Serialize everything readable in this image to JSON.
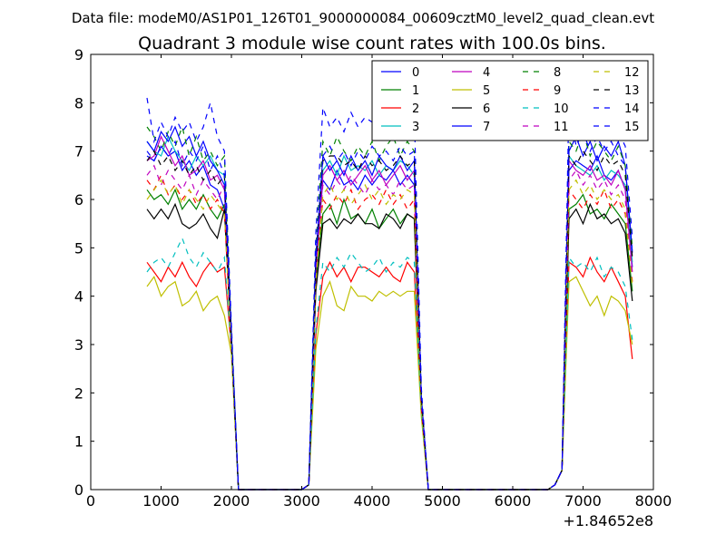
{
  "chart_data": {
    "type": "line",
    "suptitle": "Data file: modeM0/AS1P01_126T01_9000000084_00609cztM0_level2_quad_clean.evt",
    "title": "Quadrant 3 module wise count rates with 100.0s bins.",
    "xlabel": "",
    "ylabel": "",
    "x_offset_label": "+1.84652e8",
    "xlim": [
      0,
      8000
    ],
    "ylim": [
      0,
      9
    ],
    "xticks": [
      0,
      1000,
      2000,
      3000,
      4000,
      5000,
      6000,
      7000,
      8000
    ],
    "yticks": [
      0,
      1,
      2,
      3,
      4,
      5,
      6,
      7,
      8,
      9
    ],
    "legend_position": "top-right",
    "legend_columns": 4,
    "x": [
      800,
      900,
      1000,
      1100,
      1200,
      1300,
      1400,
      1500,
      1600,
      1700,
      1800,
      1900,
      2000,
      2100,
      2200,
      2300,
      2400,
      2500,
      2600,
      2700,
      2800,
      2900,
      3000,
      3100,
      3200,
      3300,
      3400,
      3500,
      3600,
      3700,
      3800,
      3900,
      4000,
      4100,
      4200,
      4300,
      4400,
      4500,
      4600,
      4700,
      4800,
      4900,
      5000,
      5100,
      5200,
      5300,
      5400,
      5500,
      5600,
      5700,
      5800,
      5900,
      6000,
      6100,
      6200,
      6300,
      6400,
      6500,
      6600,
      6700,
      6800,
      6900,
      7000,
      7100,
      7200,
      7300,
      7400,
      7500,
      7600,
      7700
    ],
    "series": [
      {
        "name": "0",
        "color": "#0000ff",
        "dash": "solid",
        "values": [
          6.9,
          6.8,
          7.1,
          6.9,
          7.0,
          6.6,
          6.8,
          6.5,
          6.7,
          6.3,
          6.2,
          5.8,
          3.0,
          0,
          0,
          0,
          0,
          0,
          0,
          0,
          0,
          0,
          0,
          0.1,
          4.6,
          6.4,
          6.2,
          6.6,
          6.3,
          6.4,
          6.2,
          6.5,
          6.3,
          6.5,
          6.4,
          6.6,
          6.3,
          6.5,
          6.3,
          1.8,
          0,
          0,
          0,
          0,
          0,
          0,
          0,
          0,
          0,
          0,
          0,
          0,
          0,
          0,
          0,
          0,
          0,
          0,
          0.1,
          0.4,
          6.6,
          6.8,
          6.7,
          6.6,
          6.9,
          6.5,
          6.4,
          6.6,
          6.2,
          4.6
        ]
      },
      {
        "name": "1",
        "color": "#008000",
        "dash": "solid",
        "values": [
          6.2,
          6.0,
          6.1,
          5.9,
          6.2,
          5.8,
          6.0,
          5.8,
          6.1,
          5.8,
          5.6,
          5.9,
          3.1,
          0,
          0,
          0,
          0,
          0,
          0,
          0,
          0,
          0,
          0,
          0.1,
          4.3,
          5.7,
          5.9,
          5.5,
          6.0,
          5.6,
          5.7,
          5.5,
          5.8,
          5.4,
          5.6,
          5.8,
          5.5,
          5.7,
          5.6,
          1.8,
          0,
          0,
          0,
          0,
          0,
          0,
          0,
          0,
          0,
          0,
          0,
          0,
          0,
          0,
          0,
          0,
          0,
          0,
          0.1,
          0.4,
          5.8,
          5.9,
          6.1,
          5.7,
          5.8,
          5.6,
          5.9,
          5.7,
          5.5,
          4.1
        ]
      },
      {
        "name": "2",
        "color": "#ff0000",
        "dash": "solid",
        "values": [
          4.7,
          4.5,
          4.3,
          4.6,
          4.4,
          4.7,
          4.4,
          4.2,
          4.5,
          4.7,
          4.5,
          4.6,
          2.9,
          0,
          0,
          0,
          0,
          0,
          0,
          0,
          0,
          0,
          0,
          0.1,
          3.2,
          4.4,
          4.7,
          4.4,
          4.6,
          4.3,
          4.6,
          4.6,
          4.5,
          4.4,
          4.6,
          4.4,
          4.3,
          4.7,
          4.5,
          1.6,
          0,
          0,
          0,
          0,
          0,
          0,
          0,
          0,
          0,
          0,
          0,
          0,
          0,
          0,
          0,
          0,
          0,
          0,
          0.1,
          0.4,
          4.7,
          4.6,
          4.4,
          4.8,
          4.5,
          4.3,
          4.6,
          4.3,
          4.0,
          2.7
        ]
      },
      {
        "name": "3",
        "color": "#00bfbf",
        "dash": "solid",
        "values": [
          7.2,
          7.0,
          6.9,
          7.3,
          7.0,
          6.8,
          6.6,
          6.9,
          6.7,
          6.9,
          6.6,
          6.5,
          3.2,
          0,
          0,
          0,
          0,
          0,
          0,
          0,
          0,
          0,
          0,
          0.1,
          4.7,
          6.6,
          6.8,
          6.5,
          6.9,
          6.6,
          6.7,
          6.6,
          6.8,
          6.5,
          6.7,
          6.6,
          6.8,
          6.7,
          6.5,
          1.9,
          0,
          0,
          0,
          0,
          0,
          0,
          0,
          0,
          0,
          0,
          0,
          0,
          0,
          0,
          0,
          0,
          0,
          0,
          0.1,
          0.4,
          6.9,
          6.7,
          6.6,
          6.5,
          6.7,
          6.4,
          6.6,
          6.5,
          6.3,
          4.7
        ]
      },
      {
        "name": "4",
        "color": "#bf00bf",
        "dash": "solid",
        "values": [
          6.8,
          6.9,
          7.3,
          7.0,
          6.7,
          6.9,
          6.5,
          6.6,
          6.8,
          6.4,
          6.5,
          6.2,
          3.1,
          0,
          0,
          0,
          0,
          0,
          0,
          0,
          0,
          0,
          0,
          0.1,
          4.5,
          6.5,
          6.7,
          6.4,
          6.6,
          6.3,
          6.5,
          6.7,
          6.4,
          6.6,
          6.3,
          6.5,
          6.7,
          6.4,
          6.6,
          1.8,
          0,
          0,
          0,
          0,
          0,
          0,
          0,
          0,
          0,
          0,
          0,
          0,
          0,
          0,
          0,
          0,
          0,
          0,
          0.1,
          0.4,
          6.8,
          6.6,
          6.5,
          6.7,
          6.4,
          6.5,
          6.3,
          6.6,
          6.2,
          4.5
        ]
      },
      {
        "name": "5",
        "color": "#bfbf00",
        "dash": "solid",
        "values": [
          4.2,
          4.4,
          4.0,
          4.2,
          4.3,
          3.8,
          3.9,
          4.1,
          3.7,
          3.9,
          4.0,
          3.6,
          2.8,
          0,
          0,
          0,
          0,
          0,
          0,
          0,
          0,
          0,
          0,
          0.1,
          2.9,
          4.0,
          4.3,
          3.8,
          3.7,
          4.2,
          4.0,
          4.0,
          3.9,
          4.1,
          4.0,
          4.1,
          4.0,
          4.1,
          4.1,
          1.5,
          0,
          0,
          0,
          0,
          0,
          0,
          0,
          0,
          0,
          0,
          0,
          0,
          0,
          0,
          0,
          0,
          0,
          0,
          0.1,
          0.4,
          4.3,
          4.4,
          4.1,
          3.8,
          4.0,
          3.6,
          4.0,
          3.9,
          3.7,
          3.0
        ]
      },
      {
        "name": "6",
        "color": "#000000",
        "dash": "solid",
        "values": [
          5.8,
          5.6,
          5.8,
          5.6,
          5.9,
          5.5,
          5.4,
          5.5,
          5.7,
          5.4,
          5.2,
          5.8,
          3.0,
          0,
          0,
          0,
          0,
          0,
          0,
          0,
          0,
          0,
          0,
          0.1,
          4.1,
          5.5,
          5.6,
          5.4,
          5.6,
          5.5,
          5.7,
          5.5,
          5.5,
          5.4,
          5.7,
          5.6,
          5.4,
          5.7,
          5.6,
          1.7,
          0,
          0,
          0,
          0,
          0,
          0,
          0,
          0,
          0,
          0,
          0,
          0,
          0,
          0,
          0,
          0,
          0,
          0,
          0.1,
          0.4,
          5.6,
          5.8,
          5.5,
          5.9,
          5.6,
          5.7,
          5.5,
          5.6,
          5.3,
          3.9
        ]
      },
      {
        "name": "7",
        "color": "#0000ff",
        "dash": "solid",
        "values": [
          7.2,
          7.0,
          7.4,
          7.2,
          7.5,
          7.1,
          7.3,
          6.9,
          7.2,
          6.8,
          6.6,
          6.3,
          3.2,
          0,
          0,
          0,
          0,
          0,
          0,
          0,
          0,
          0,
          0,
          0.1,
          4.8,
          6.9,
          6.6,
          6.8,
          6.5,
          6.9,
          6.6,
          6.8,
          6.5,
          6.9,
          6.7,
          6.6,
          6.9,
          6.6,
          6.8,
          1.9,
          0,
          0,
          0,
          0,
          0,
          0,
          0,
          0,
          0,
          0,
          0,
          0,
          0,
          0,
          0,
          0,
          0,
          0,
          0.1,
          0.4,
          7.0,
          7.3,
          6.9,
          7.2,
          6.8,
          7.1,
          6.9,
          7.2,
          6.7,
          4.9
        ]
      },
      {
        "name": "8",
        "color": "#008000",
        "dash": "dashed",
        "values": [
          7.5,
          7.3,
          7.0,
          7.4,
          7.1,
          7.5,
          6.9,
          7.3,
          6.8,
          7.0,
          6.7,
          6.9,
          3.3,
          0,
          0,
          0,
          0,
          0,
          0,
          0,
          0,
          0,
          0,
          0.1,
          5.0,
          7.2,
          6.9,
          7.3,
          7.0,
          6.8,
          7.1,
          6.9,
          7.2,
          6.8,
          7.1,
          7.3,
          6.9,
          7.2,
          7.0,
          2.0,
          0,
          0,
          0,
          0,
          0,
          0,
          0,
          0,
          0,
          0,
          0,
          0,
          0,
          0,
          0,
          0,
          0,
          0,
          0.1,
          0.4,
          7.2,
          7.0,
          7.4,
          6.9,
          7.2,
          7.0,
          6.8,
          7.1,
          6.7,
          5.0
        ]
      },
      {
        "name": "9",
        "color": "#ff0000",
        "dash": "dashed",
        "values": [
          6.4,
          6.2,
          6.5,
          6.1,
          6.3,
          6.0,
          6.2,
          5.9,
          6.1,
          5.8,
          6.0,
          5.7,
          3.0,
          0,
          0,
          0,
          0,
          0,
          0,
          0,
          0,
          0,
          0,
          0.1,
          4.4,
          6.0,
          5.8,
          6.1,
          5.9,
          6.2,
          5.8,
          6.0,
          6.1,
          5.9,
          6.2,
          5.9,
          6.1,
          5.8,
          6.0,
          1.7,
          0,
          0,
          0,
          0,
          0,
          0,
          0,
          0,
          0,
          0,
          0,
          0,
          0,
          0,
          0,
          0,
          0,
          0,
          0.1,
          0.4,
          6.2,
          6.0,
          5.8,
          6.1,
          5.9,
          6.2,
          5.8,
          6.0,
          5.7,
          4.3
        ]
      },
      {
        "name": "10",
        "color": "#00bfbf",
        "dash": "dashed",
        "values": [
          4.5,
          4.7,
          4.8,
          4.6,
          4.9,
          5.2,
          4.8,
          4.6,
          4.9,
          4.7,
          4.5,
          4.8,
          2.9,
          0,
          0,
          0,
          0,
          0,
          0,
          0,
          0,
          0,
          0,
          0.1,
          3.3,
          4.7,
          4.5,
          4.8,
          4.6,
          4.9,
          4.7,
          4.5,
          4.6,
          4.8,
          4.5,
          4.7,
          4.6,
          4.8,
          4.7,
          1.6,
          0,
          0,
          0,
          0,
          0,
          0,
          0,
          0,
          0,
          0,
          0,
          0,
          0,
          0,
          0,
          0,
          0,
          0,
          0.1,
          0.4,
          4.8,
          4.6,
          4.7,
          4.5,
          4.8,
          4.4,
          4.6,
          4.5,
          4.2,
          3.1
        ]
      },
      {
        "name": "11",
        "color": "#bf00bf",
        "dash": "dashed",
        "values": [
          6.5,
          6.7,
          6.3,
          6.6,
          6.4,
          6.2,
          6.5,
          6.1,
          6.4,
          6.2,
          6.0,
          6.3,
          3.0,
          0,
          0,
          0,
          0,
          0,
          0,
          0,
          0,
          0,
          0,
          0.1,
          4.5,
          6.3,
          6.1,
          6.4,
          6.2,
          6.5,
          6.3,
          6.1,
          6.4,
          6.2,
          6.3,
          6.1,
          6.4,
          6.2,
          6.3,
          1.8,
          0,
          0,
          0,
          0,
          0,
          0,
          0,
          0,
          0,
          0,
          0,
          0,
          0,
          0,
          0,
          0,
          0,
          0,
          0.1,
          0.4,
          6.4,
          6.6,
          6.3,
          6.5,
          6.2,
          6.4,
          6.1,
          6.3,
          6.0,
          4.4
        ]
      },
      {
        "name": "12",
        "color": "#bfbf00",
        "dash": "dashed",
        "values": [
          6.0,
          6.2,
          6.4,
          6.1,
          6.3,
          5.9,
          6.2,
          6.0,
          5.8,
          6.1,
          5.9,
          5.7,
          2.9,
          0,
          0,
          0,
          0,
          0,
          0,
          0,
          0,
          0,
          0,
          0.1,
          4.3,
          6.1,
          6.3,
          6.0,
          6.2,
          5.9,
          6.1,
          6.3,
          6.0,
          6.2,
          5.9,
          6.1,
          6.0,
          6.2,
          6.1,
          1.7,
          0,
          0,
          0,
          0,
          0,
          0,
          0,
          0,
          0,
          0,
          0,
          0,
          0,
          0,
          0,
          0,
          0,
          0,
          0.1,
          0.4,
          6.2,
          6.4,
          6.1,
          6.3,
          6.0,
          6.2,
          6.0,
          6.1,
          5.8,
          4.2
        ]
      },
      {
        "name": "13",
        "color": "#000000",
        "dash": "dashed",
        "values": [
          6.8,
          7.0,
          6.7,
          6.9,
          6.6,
          6.8,
          6.5,
          6.7,
          6.4,
          6.6,
          6.3,
          6.5,
          3.1,
          0,
          0,
          0,
          0,
          0,
          0,
          0,
          0,
          0,
          0,
          0.1,
          4.6,
          6.8,
          6.9,
          6.9,
          6.7,
          6.8,
          6.6,
          6.9,
          6.7,
          6.8,
          6.6,
          6.7,
          6.9,
          6.7,
          6.8,
          1.9,
          0,
          0,
          0,
          0,
          0,
          0,
          0,
          0,
          0,
          0,
          0,
          0,
          0,
          0,
          0,
          0,
          0,
          0,
          0.1,
          0.4,
          6.9,
          6.7,
          7.0,
          6.8,
          6.6,
          6.9,
          6.7,
          6.8,
          6.5,
          4.8
        ]
      },
      {
        "name": "14",
        "color": "#0000ff",
        "dash": "dashed",
        "values": [
          8.1,
          7.2,
          7.6,
          7.3,
          7.7,
          7.4,
          7.6,
          7.2,
          7.5,
          8.0,
          7.3,
          7.0,
          3.4,
          0,
          0,
          0,
          0,
          0,
          0,
          0,
          0,
          0,
          0,
          0.1,
          5.3,
          7.9,
          7.5,
          7.7,
          7.4,
          7.8,
          7.5,
          7.7,
          7.6,
          7.8,
          7.5,
          7.7,
          7.4,
          7.6,
          7.8,
          2.1,
          0,
          0,
          0,
          0,
          0,
          0,
          0,
          0,
          0,
          0,
          0,
          0,
          0,
          0,
          0,
          0,
          0,
          0,
          0.1,
          0.4,
          7.5,
          7.7,
          7.4,
          7.8,
          7.5,
          7.3,
          7.6,
          7.4,
          7.1,
          5.2
        ]
      },
      {
        "name": "15",
        "color": "#0000ff",
        "dash": "dashed",
        "values": [
          7.0,
          6.8,
          7.1,
          6.9,
          7.2,
          6.7,
          7.0,
          6.8,
          7.1,
          6.6,
          6.9,
          6.5,
          3.2,
          0,
          0,
          0,
          0,
          0,
          0,
          0,
          0,
          0,
          0,
          0.1,
          4.8,
          6.9,
          7.1,
          6.8,
          7.0,
          6.7,
          7.0,
          6.8,
          7.1,
          6.9,
          7.0,
          6.8,
          7.1,
          6.9,
          7.0,
          1.9,
          0,
          0,
          0,
          0,
          0,
          0,
          0,
          0,
          0,
          0,
          0,
          0,
          0,
          0,
          0,
          0,
          0,
          0,
          0.1,
          0.4,
          8.1,
          7.1,
          7.4,
          7.0,
          7.3,
          7.0,
          7.2,
          6.9,
          6.7,
          4.9
        ]
      }
    ]
  }
}
